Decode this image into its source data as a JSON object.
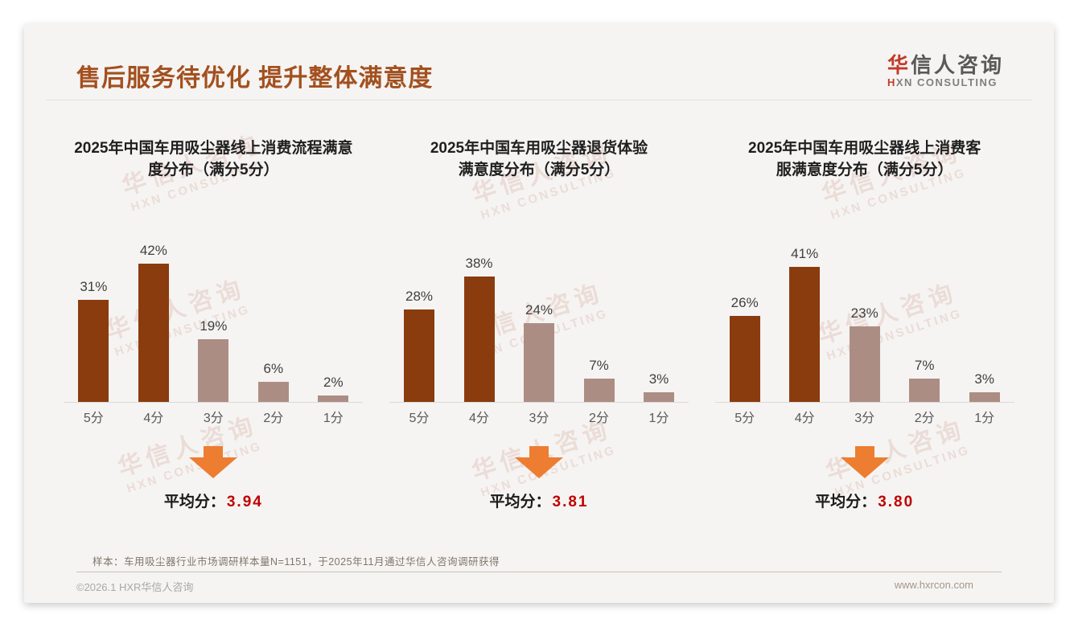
{
  "slide": {
    "header": {
      "title": "售后服务待优化 提升整体满意度",
      "logo_cn_accent": "华",
      "logo_cn_rest": "信人咨询",
      "logo_en_accent": "H",
      "logo_en_rest": "XN CONSULTING"
    },
    "footnote": "样本：车用吸尘器行业市场调研样本量N=1151，于2025年11月通过华信人咨询调研获得",
    "footer_left": "©2026.1 HXR华信人咨询",
    "footer_right": "www.hxrcon.com",
    "watermark_line1": "华信人咨询",
    "watermark_line2": "HXN CONSULTING"
  },
  "chart_data": [
    {
      "type": "bar",
      "title": "2025年中国车用吸尘器线上消费流程满意度分布（满分5分）",
      "title_lines": [
        "2025年中国车用吸尘器线上消费流程满意",
        "度分布（满分5分）"
      ],
      "categories": [
        "5分",
        "4分",
        "3分",
        "2分",
        "1分"
      ],
      "values": [
        31,
        42,
        19,
        6,
        2
      ],
      "value_labels": [
        "31%",
        "42%",
        "19%",
        "6%",
        "2%"
      ],
      "unit": "%",
      "bar_styles": [
        "dark",
        "dark",
        "light",
        "light",
        "light"
      ],
      "average_label": "平均分：",
      "average": "3.94",
      "ylim": [
        0,
        45
      ],
      "grid": false,
      "legend": "none"
    },
    {
      "type": "bar",
      "title": "2025年中国车用吸尘器退货体验满意度分布（满分5分）",
      "title_lines": [
        "2025年中国车用吸尘器退货体验",
        "满意度分布（满分5分）"
      ],
      "categories": [
        "5分",
        "4分",
        "3分",
        "2分",
        "1分"
      ],
      "values": [
        28,
        38,
        24,
        7,
        3
      ],
      "value_labels": [
        "28%",
        "38%",
        "24%",
        "7%",
        "3%"
      ],
      "unit": "%",
      "bar_styles": [
        "dark",
        "dark",
        "light",
        "light",
        "light"
      ],
      "average_label": "平均分：",
      "average": "3.81",
      "ylim": [
        0,
        45
      ],
      "grid": false,
      "legend": "none"
    },
    {
      "type": "bar",
      "title": "2025年中国车用吸尘器线上消费客服满意度分布（满分5分）",
      "title_lines": [
        "2025年中国车用吸尘器线上消费客",
        "服满意度分布（满分5分）"
      ],
      "categories": [
        "5分",
        "4分",
        "3分",
        "2分",
        "1分"
      ],
      "values": [
        26,
        41,
        23,
        7,
        3
      ],
      "value_labels": [
        "26%",
        "41%",
        "23%",
        "7%",
        "3%"
      ],
      "unit": "%",
      "bar_styles": [
        "dark",
        "dark",
        "light",
        "light",
        "light"
      ],
      "average_label": "平均分：",
      "average": "3.80",
      "ylim": [
        0,
        45
      ],
      "grid": false,
      "legend": "none"
    }
  ],
  "colors": {
    "page_title": "#a3501f",
    "bar_dark": "#8a3c0f",
    "bar_light": "#ac8d84",
    "arrow_orange": "#ed7d31",
    "average_red": "#c00000",
    "logo_red": "#c23a2b",
    "slide_bg": "#f5f4f2"
  }
}
